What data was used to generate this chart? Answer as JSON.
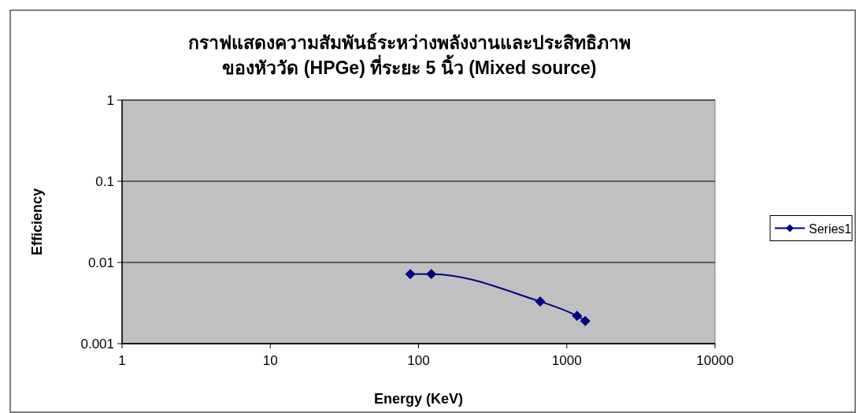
{
  "chart_data": {
    "type": "line",
    "title": "กราฟแสดงความสัมพันธ์ระหว่างพลังงานและประสิทธิภาพ\nของหัววัด (HPGe) ที่ระยะ 5 นิ้ว (Mixed source)",
    "xlabel": "Energy (KeV)",
    "ylabel": "Efficiency",
    "x": [
      88,
      122,
      662,
      1173,
      1332
    ],
    "series": [
      {
        "name": "Series1",
        "color": "#000080",
        "values": [
          0.0072,
          0.0072,
          0.0033,
          0.0022,
          0.0019
        ]
      }
    ],
    "log": "xy",
    "xlim": [
      1,
      10000
    ],
    "ylim": [
      0.001,
      1
    ],
    "xticks": [
      1,
      10,
      100,
      1000,
      10000
    ],
    "yticks": [
      0.001,
      0.01,
      0.1,
      1
    ],
    "grid": "y",
    "legend": "right",
    "marker": "diamond",
    "line_style": "solid"
  }
}
